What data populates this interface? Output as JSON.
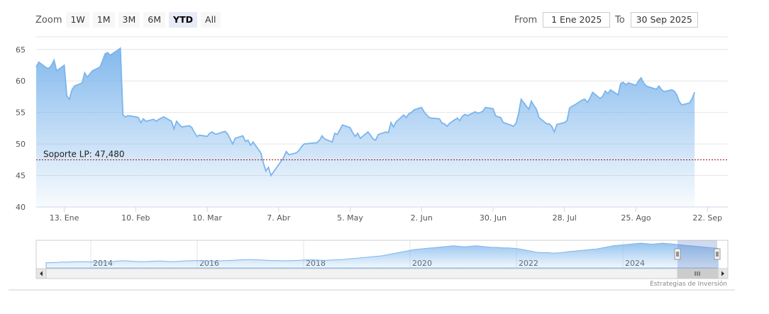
{
  "zoom": {
    "label": "Zoom",
    "buttons": [
      {
        "label": "1W",
        "active": false
      },
      {
        "label": "1M",
        "active": false
      },
      {
        "label": "3M",
        "active": false
      },
      {
        "label": "6M",
        "active": false
      },
      {
        "label": "YTD",
        "active": true
      },
      {
        "label": "All",
        "active": false
      }
    ]
  },
  "range": {
    "from_label": "From",
    "from_value": "1 Ene 2025",
    "to_label": "To",
    "to_value": "30 Sep 2025"
  },
  "credit": "Estrategias de Inversión",
  "chart_data": {
    "type": "area",
    "x_start": "2025-01-02",
    "x_end": "2025-09-30",
    "ylim": [
      40,
      67
    ],
    "y_ticks": [
      40,
      45,
      50,
      55,
      60,
      65
    ],
    "x_ticks": [
      {
        "label": "13. Ene",
        "date": "2025-01-13"
      },
      {
        "label": "10. Feb",
        "date": "2025-02-10"
      },
      {
        "label": "10. Mar",
        "date": "2025-03-10"
      },
      {
        "label": "7. Abr",
        "date": "2025-04-07"
      },
      {
        "label": "5. May",
        "date": "2025-05-05"
      },
      {
        "label": "2. Jun",
        "date": "2025-06-02"
      },
      {
        "label": "30. Jun",
        "date": "2025-06-30"
      },
      {
        "label": "28. Jul",
        "date": "2025-07-28"
      },
      {
        "label": "25. Ago",
        "date": "2025-08-25"
      },
      {
        "label": "22. Sep",
        "date": "2025-09-22"
      }
    ],
    "grid": true,
    "line_color": "#7cb5ec",
    "support": {
      "label": "Soporte LP: 47,480",
      "value": 47.48,
      "color": "#a01010"
    },
    "series": [
      {
        "points": [
          [
            "2025-01-02",
            62.2
          ],
          [
            "2025-01-03",
            63.0
          ],
          [
            "2025-01-06",
            62.1
          ],
          [
            "2025-01-07",
            62.0
          ],
          [
            "2025-01-08",
            62.5
          ],
          [
            "2025-01-09",
            63.3
          ],
          [
            "2025-01-10",
            61.6
          ],
          [
            "2025-01-13",
            62.5
          ],
          [
            "2025-01-14",
            57.6
          ],
          [
            "2025-01-15",
            57.1
          ],
          [
            "2025-01-16",
            58.6
          ],
          [
            "2025-01-17",
            59.2
          ],
          [
            "2025-01-20",
            59.7
          ],
          [
            "2025-01-21",
            61.3
          ],
          [
            "2025-01-22",
            60.6
          ],
          [
            "2025-01-23",
            61.1
          ],
          [
            "2025-01-24",
            61.6
          ],
          [
            "2025-01-27",
            62.2
          ],
          [
            "2025-01-28",
            63.2
          ],
          [
            "2025-01-29",
            64.3
          ],
          [
            "2025-01-30",
            64.5
          ],
          [
            "2025-01-31",
            64.1
          ],
          [
            "2025-02-03",
            64.9
          ],
          [
            "2025-02-04",
            65.2
          ],
          [
            "2025-02-05",
            54.6
          ],
          [
            "2025-02-06",
            54.3
          ],
          [
            "2025-02-07",
            54.5
          ],
          [
            "2025-02-10",
            54.3
          ],
          [
            "2025-02-11",
            54.2
          ],
          [
            "2025-02-12",
            53.4
          ],
          [
            "2025-02-13",
            54.0
          ],
          [
            "2025-02-14",
            53.6
          ],
          [
            "2025-02-17",
            53.9
          ],
          [
            "2025-02-18",
            53.6
          ],
          [
            "2025-02-19",
            53.9
          ],
          [
            "2025-02-20",
            54.1
          ],
          [
            "2025-02-21",
            54.3
          ],
          [
            "2025-02-24",
            53.6
          ],
          [
            "2025-02-25",
            52.4
          ],
          [
            "2025-02-26",
            53.6
          ],
          [
            "2025-02-27",
            53.1
          ],
          [
            "2025-02-28",
            52.7
          ],
          [
            "2025-03-03",
            52.9
          ],
          [
            "2025-03-04",
            52.6
          ],
          [
            "2025-03-05",
            51.8
          ],
          [
            "2025-03-06",
            51.2
          ],
          [
            "2025-03-07",
            51.4
          ],
          [
            "2025-03-10",
            51.2
          ],
          [
            "2025-03-11",
            51.7
          ],
          [
            "2025-03-12",
            51.9
          ],
          [
            "2025-03-13",
            51.6
          ],
          [
            "2025-03-14",
            51.6
          ],
          [
            "2025-03-17",
            52.0
          ],
          [
            "2025-03-18",
            51.6
          ],
          [
            "2025-03-19",
            50.8
          ],
          [
            "2025-03-20",
            50.0
          ],
          [
            "2025-03-21",
            50.9
          ],
          [
            "2025-03-24",
            51.3
          ],
          [
            "2025-03-25",
            50.4
          ],
          [
            "2025-03-26",
            50.6
          ],
          [
            "2025-03-27",
            49.8
          ],
          [
            "2025-03-28",
            50.3
          ],
          [
            "2025-03-31",
            48.6
          ],
          [
            "2025-04-01",
            47.0
          ],
          [
            "2025-04-02",
            45.7
          ],
          [
            "2025-04-03",
            46.3
          ],
          [
            "2025-04-04",
            45.0
          ],
          [
            "2025-04-07",
            46.7
          ],
          [
            "2025-04-08",
            47.3
          ],
          [
            "2025-04-09",
            47.9
          ],
          [
            "2025-04-10",
            48.8
          ],
          [
            "2025-04-11",
            48.3
          ],
          [
            "2025-04-14",
            48.6
          ],
          [
            "2025-04-15",
            49.0
          ],
          [
            "2025-04-16",
            49.6
          ],
          [
            "2025-04-17",
            50.0
          ],
          [
            "2025-04-22",
            50.2
          ],
          [
            "2025-04-23",
            50.6
          ],
          [
            "2025-04-24",
            51.3
          ],
          [
            "2025-04-25",
            50.8
          ],
          [
            "2025-04-28",
            50.3
          ],
          [
            "2025-04-29",
            51.7
          ],
          [
            "2025-04-30",
            51.5
          ],
          [
            "2025-05-02",
            53.0
          ],
          [
            "2025-05-05",
            52.6
          ],
          [
            "2025-05-06",
            51.8
          ],
          [
            "2025-05-07",
            51.2
          ],
          [
            "2025-05-08",
            51.7
          ],
          [
            "2025-05-09",
            50.9
          ],
          [
            "2025-05-12",
            51.9
          ],
          [
            "2025-05-13",
            51.4
          ],
          [
            "2025-05-14",
            50.8
          ],
          [
            "2025-05-15",
            50.6
          ],
          [
            "2025-05-16",
            51.5
          ],
          [
            "2025-05-19",
            51.9
          ],
          [
            "2025-05-20",
            51.8
          ],
          [
            "2025-05-21",
            53.4
          ],
          [
            "2025-05-22",
            52.7
          ],
          [
            "2025-05-23",
            53.5
          ],
          [
            "2025-05-26",
            54.6
          ],
          [
            "2025-05-27",
            54.2
          ],
          [
            "2025-05-28",
            54.8
          ],
          [
            "2025-05-29",
            55.0
          ],
          [
            "2025-05-30",
            55.4
          ],
          [
            "2025-06-02",
            55.8
          ],
          [
            "2025-06-03",
            55.1
          ],
          [
            "2025-06-04",
            54.6
          ],
          [
            "2025-06-05",
            54.2
          ],
          [
            "2025-06-06",
            54.1
          ],
          [
            "2025-06-09",
            54.0
          ],
          [
            "2025-06-10",
            53.3
          ],
          [
            "2025-06-11",
            53.2
          ],
          [
            "2025-06-12",
            52.8
          ],
          [
            "2025-06-13",
            53.3
          ],
          [
            "2025-06-16",
            54.1
          ],
          [
            "2025-06-17",
            53.7
          ],
          [
            "2025-06-18",
            54.4
          ],
          [
            "2025-06-19",
            54.7
          ],
          [
            "2025-06-20",
            54.5
          ],
          [
            "2025-06-23",
            55.1
          ],
          [
            "2025-06-24",
            54.9
          ],
          [
            "2025-06-25",
            55.0
          ],
          [
            "2025-06-26",
            55.2
          ],
          [
            "2025-06-27",
            55.8
          ],
          [
            "2025-06-30",
            55.6
          ],
          [
            "2025-07-01",
            54.5
          ],
          [
            "2025-07-02",
            54.3
          ],
          [
            "2025-07-03",
            54.2
          ],
          [
            "2025-07-04",
            53.4
          ],
          [
            "2025-07-07",
            53.0
          ],
          [
            "2025-07-08",
            52.8
          ],
          [
            "2025-07-09",
            53.3
          ],
          [
            "2025-07-10",
            54.8
          ],
          [
            "2025-07-11",
            57.1
          ],
          [
            "2025-07-14",
            55.5
          ],
          [
            "2025-07-15",
            56.8
          ],
          [
            "2025-07-16",
            56.1
          ],
          [
            "2025-07-17",
            55.5
          ],
          [
            "2025-07-18",
            54.2
          ],
          [
            "2025-07-21",
            53.2
          ],
          [
            "2025-07-22",
            53.2
          ],
          [
            "2025-07-23",
            52.8
          ],
          [
            "2025-07-24",
            51.9
          ],
          [
            "2025-07-25",
            53.1
          ],
          [
            "2025-07-28",
            53.4
          ],
          [
            "2025-07-29",
            53.7
          ],
          [
            "2025-07-30",
            55.7
          ],
          [
            "2025-07-31",
            56.0
          ],
          [
            "2025-08-01",
            56.2
          ],
          [
            "2025-08-04",
            57.0
          ],
          [
            "2025-08-05",
            57.1
          ],
          [
            "2025-08-06",
            56.6
          ],
          [
            "2025-08-07",
            57.3
          ],
          [
            "2025-08-08",
            58.2
          ],
          [
            "2025-08-11",
            57.2
          ],
          [
            "2025-08-12",
            57.6
          ],
          [
            "2025-08-13",
            58.4
          ],
          [
            "2025-08-14",
            58.0
          ],
          [
            "2025-08-15",
            58.6
          ],
          [
            "2025-08-18",
            57.8
          ],
          [
            "2025-08-19",
            59.6
          ],
          [
            "2025-08-20",
            59.8
          ],
          [
            "2025-08-21",
            59.4
          ],
          [
            "2025-08-22",
            59.7
          ],
          [
            "2025-08-25",
            59.3
          ],
          [
            "2025-08-26",
            60.0
          ],
          [
            "2025-08-27",
            60.5
          ],
          [
            "2025-08-28",
            59.7
          ],
          [
            "2025-08-29",
            59.2
          ],
          [
            "2025-09-01",
            58.8
          ],
          [
            "2025-09-02",
            58.7
          ],
          [
            "2025-09-03",
            59.2
          ],
          [
            "2025-09-04",
            58.6
          ],
          [
            "2025-09-05",
            58.3
          ],
          [
            "2025-09-08",
            58.6
          ],
          [
            "2025-09-09",
            58.4
          ],
          [
            "2025-09-10",
            57.8
          ],
          [
            "2025-09-11",
            56.7
          ],
          [
            "2025-09-12",
            56.2
          ],
          [
            "2025-09-15",
            56.5
          ],
          [
            "2025-09-16",
            57.2
          ],
          [
            "2025-09-17",
            58.2
          ]
        ]
      }
    ]
  },
  "navigator": {
    "year_labels": [
      "2014",
      "2016",
      "2018",
      "2020",
      "2022",
      "2024"
    ],
    "series_values": [
      10,
      10,
      10.5,
      11,
      11,
      11.5,
      12,
      12,
      11.5,
      11,
      11,
      11.5,
      12,
      13,
      13.5,
      13,
      12.5,
      12,
      12,
      12.5,
      13,
      13,
      12.5,
      12,
      12.5,
      13,
      13.5,
      14,
      14,
      13.5,
      13,
      13,
      13.5,
      14,
      14.5,
      15,
      15.5,
      16,
      15.5,
      15,
      14.5,
      14,
      14,
      13.5,
      13.5,
      14,
      14.5,
      15,
      15.5,
      15,
      14.5,
      14.5,
      15,
      15.5,
      16,
      17,
      18,
      19,
      20,
      21,
      22,
      23,
      25,
      27,
      29,
      31,
      33,
      35,
      36,
      37,
      38,
      39,
      40,
      41,
      42,
      41,
      40,
      41,
      42,
      41,
      40,
      39,
      39,
      38,
      38,
      37,
      36,
      34,
      32,
      30,
      29,
      29,
      28,
      28.5,
      29.5,
      31,
      32,
      33,
      34,
      35,
      36,
      38,
      40,
      42,
      43,
      44,
      45,
      46,
      47,
      46,
      45,
      46,
      47,
      46,
      45,
      44,
      43,
      42,
      41,
      40,
      39,
      38,
      37
    ]
  }
}
